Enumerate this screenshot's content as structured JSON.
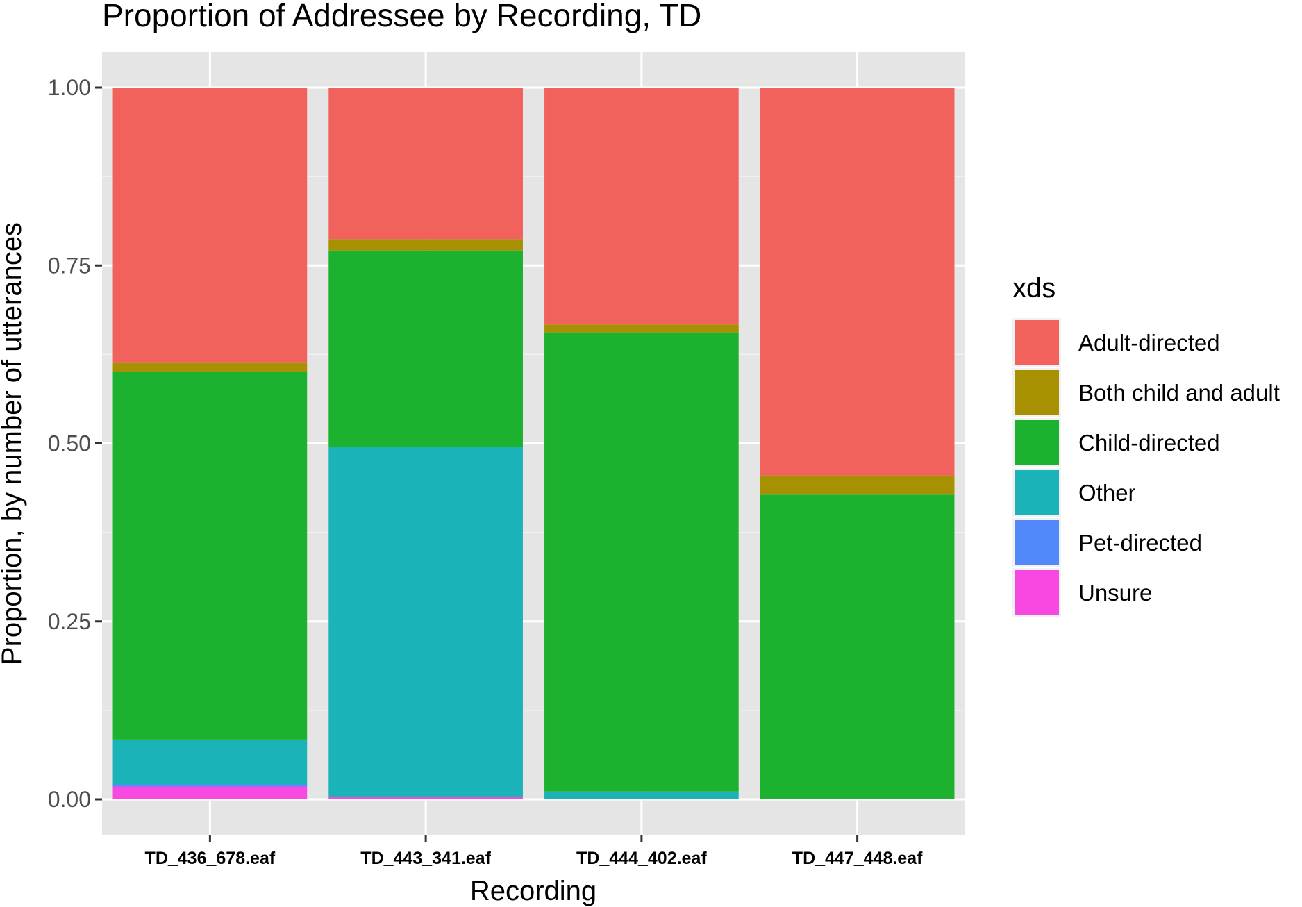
{
  "chart_data": {
    "type": "bar",
    "stacked": true,
    "title": "Proportion of Addressee by Recording, TD",
    "xlabel": "Recording",
    "ylabel": "Proportion, by number of utterances",
    "ylim": [
      0,
      1
    ],
    "yticks": [
      "0.00",
      "0.25",
      "0.50",
      "0.75",
      "1.00"
    ],
    "ytick_values": [
      0,
      0.25,
      0.5,
      0.75,
      1
    ],
    "grid": true,
    "legend_title": "xds",
    "legend_position": "right",
    "categories": [
      "TD_436_678.eaf",
      "TD_443_341.eaf",
      "TD_444_402.eaf",
      "TD_447_448.eaf"
    ],
    "series": [
      {
        "name": "Unsure",
        "color": "#F748E1",
        "values": [
          0.018,
          0.003,
          0.0,
          0.0
        ]
      },
      {
        "name": "Pet-directed",
        "color": "#5189FB",
        "values": [
          0.003,
          0.0,
          0.0,
          0.0
        ]
      },
      {
        "name": "Other",
        "color": "#1AB3B7",
        "values": [
          0.063,
          0.492,
          0.011,
          0.0
        ]
      },
      {
        "name": "Child-directed",
        "color": "#1CB12F",
        "values": [
          0.517,
          0.276,
          0.645,
          0.428
        ]
      },
      {
        "name": "Both child and adult",
        "color": "#A89003",
        "values": [
          0.013,
          0.016,
          0.011,
          0.027
        ]
      },
      {
        "name": "Adult-directed",
        "color": "#F2625D",
        "values": [
          0.386,
          0.213,
          0.333,
          0.545
        ]
      }
    ],
    "legend_order": [
      "Adult-directed",
      "Both child and adult",
      "Child-directed",
      "Other",
      "Pet-directed",
      "Unsure"
    ]
  }
}
